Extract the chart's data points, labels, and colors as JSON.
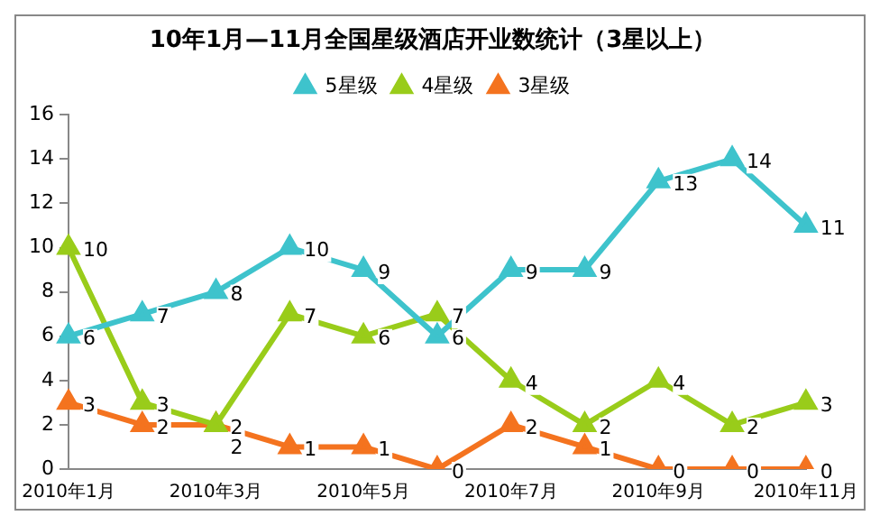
{
  "chart_data": {
    "type": "line",
    "title": "10年1月—11月全国星级酒店开业数统计（3星以上）",
    "categories": [
      "2010年1月",
      null,
      "2010年3月",
      null,
      "2010年5月",
      null,
      "2010年7月",
      null,
      "2010年9月",
      null,
      "2010年11月"
    ],
    "series": [
      {
        "name": "5星级",
        "color": "#3ec3cc",
        "values": [
          6,
          7,
          8,
          10,
          9,
          6,
          9,
          9,
          13,
          14,
          11
        ]
      },
      {
        "name": "4星级",
        "color": "#99cc1a",
        "values": [
          10,
          3,
          2,
          7,
          6,
          7,
          4,
          2,
          4,
          2,
          3
        ]
      },
      {
        "name": "3星级",
        "color": "#f4731f",
        "values": [
          3,
          2,
          2,
          1,
          1,
          0,
          2,
          1,
          0,
          0,
          0
        ]
      }
    ],
    "ylim": [
      0,
      16
    ],
    "yticks": [
      0,
      2,
      4,
      6,
      8,
      10,
      12,
      14,
      16
    ],
    "grid": false,
    "legend": "top",
    "marker": "triangle",
    "data_labels": true
  }
}
